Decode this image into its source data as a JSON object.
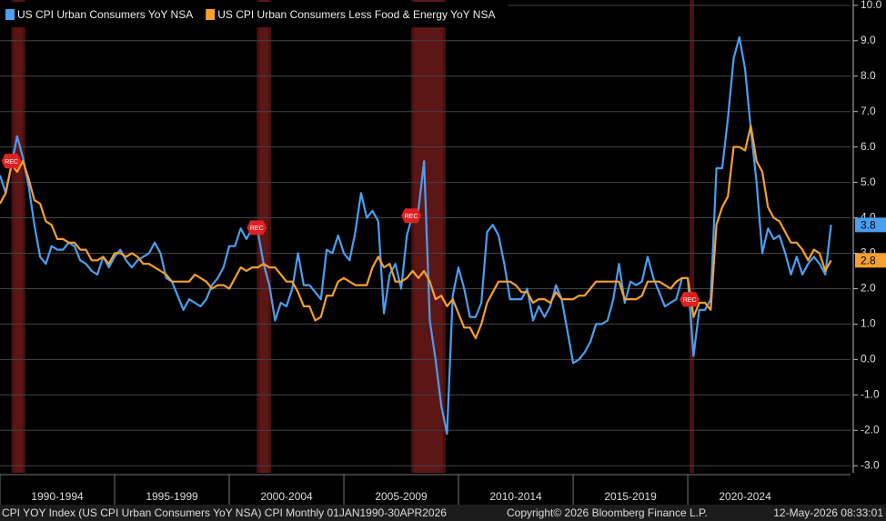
{
  "chart_data": {
    "type": "line",
    "series": [
      {
        "name": "US CPI Urban Consumers YoY NSA",
        "color": "#4a9ff0",
        "values": [
          5.2,
          4.7,
          5.5,
          6.3,
          5.7,
          4.9,
          3.8,
          2.9,
          2.7,
          3.2,
          3.1,
          3.1,
          3.3,
          3.2,
          2.8,
          2.7,
          2.5,
          2.4,
          2.9,
          2.6,
          2.9,
          3.1,
          2.8,
          2.6,
          2.8,
          2.9,
          3.0,
          3.3,
          3.0,
          2.3,
          2.2,
          1.8,
          1.4,
          1.7,
          1.6,
          1.5,
          1.7,
          2.1,
          2.3,
          2.6,
          3.2,
          3.2,
          3.7,
          3.4,
          3.7,
          3.6,
          2.7,
          2.1,
          1.1,
          1.6,
          1.5,
          2.0,
          3.0,
          2.1,
          2.1,
          1.9,
          1.7,
          3.1,
          3.0,
          3.5,
          3.0,
          2.8,
          3.6,
          4.7,
          4.0,
          4.2,
          3.9,
          1.3,
          2.4,
          2.7,
          2.0,
          3.5,
          4.1,
          4.2,
          5.6,
          1.1,
          0.0,
          -1.3,
          -2.1,
          1.8,
          2.6,
          2.0,
          1.2,
          1.2,
          1.6,
          3.6,
          3.8,
          3.5,
          2.7,
          1.7,
          1.7,
          1.7,
          2.0,
          1.1,
          1.5,
          1.2,
          1.5,
          2.1,
          1.7,
          0.8,
          -0.1,
          0.0,
          0.2,
          0.5,
          1.0,
          1.0,
          1.1,
          1.7,
          2.7,
          1.6,
          2.2,
          2.1,
          2.2,
          2.9,
          2.3,
          1.9,
          1.5,
          1.6,
          1.7,
          2.3,
          2.3,
          0.1,
          1.4,
          1.4,
          1.7,
          5.4,
          5.4,
          6.8,
          8.5,
          9.1,
          8.2,
          6.5,
          5.0,
          3.0,
          3.7,
          3.4,
          3.5,
          3.0,
          2.4,
          2.9,
          2.4,
          2.7,
          2.9,
          2.7,
          2.4,
          3.8
        ]
      },
      {
        "name": "US CPI Urban Consumers Less Food & Energy YoY NSA",
        "color": "#f5a030",
        "values": [
          4.4,
          4.7,
          5.5,
          5.3,
          5.6,
          5.1,
          4.5,
          4.4,
          3.9,
          3.8,
          3.4,
          3.4,
          3.3,
          3.3,
          3.1,
          3.1,
          2.8,
          2.8,
          2.9,
          2.7,
          3.0,
          3.0,
          2.9,
          3.0,
          2.9,
          2.7,
          2.7,
          2.6,
          2.5,
          2.4,
          2.2,
          2.2,
          2.2,
          2.2,
          2.4,
          2.3,
          2.2,
          2.0,
          2.1,
          2.1,
          2.0,
          2.3,
          2.6,
          2.5,
          2.6,
          2.6,
          2.7,
          2.6,
          2.6,
          2.4,
          2.2,
          2.2,
          1.9,
          1.5,
          1.5,
          1.1,
          1.2,
          1.8,
          1.8,
          2.2,
          2.3,
          2.2,
          2.1,
          2.1,
          2.1,
          2.6,
          2.9,
          2.6,
          2.7,
          2.2,
          2.2,
          2.3,
          2.5,
          2.3,
          2.5,
          2.2,
          1.7,
          1.8,
          1.5,
          1.7,
          1.3,
          0.9,
          0.9,
          0.6,
          1.0,
          1.6,
          1.9,
          2.2,
          2.2,
          2.2,
          2.1,
          1.9,
          1.9,
          1.6,
          1.7,
          1.7,
          1.6,
          1.9,
          1.7,
          1.7,
          1.7,
          1.8,
          1.8,
          2.0,
          2.2,
          2.2,
          2.2,
          2.2,
          2.2,
          1.7,
          1.7,
          1.7,
          1.8,
          2.2,
          2.2,
          2.2,
          2.1,
          2.0,
          2.2,
          2.3,
          2.3,
          1.2,
          1.6,
          1.6,
          1.4,
          3.8,
          4.3,
          4.6,
          6.0,
          6.0,
          5.9,
          6.6,
          5.6,
          5.3,
          4.3,
          4.0,
          3.9,
          3.6,
          3.3,
          3.3,
          3.1,
          2.8,
          3.1,
          3.0,
          2.5,
          2.8
        ]
      }
    ],
    "x": [
      1990,
      1990.25,
      1990.5,
      1990.75,
      1991,
      1991.25,
      1991.5,
      1991.75,
      1992,
      1992.25,
      1992.5,
      1992.75,
      1993,
      1993.25,
      1993.5,
      1993.75,
      1994,
      1994.25,
      1994.5,
      1994.75,
      1995,
      1995.25,
      1995.5,
      1995.75,
      1996,
      1996.25,
      1996.5,
      1996.75,
      1997,
      1997.25,
      1997.5,
      1997.75,
      1998,
      1998.25,
      1998.5,
      1998.75,
      1999,
      1999.25,
      1999.5,
      1999.75,
      2000,
      2000.25,
      2000.5,
      2000.75,
      2001,
      2001.25,
      2001.5,
      2001.75,
      2002,
      2002.25,
      2002.5,
      2002.75,
      2003,
      2003.25,
      2003.5,
      2003.75,
      2004,
      2004.25,
      2004.5,
      2004.75,
      2005,
      2005.25,
      2005.5,
      2005.75,
      2006,
      2006.25,
      2006.5,
      2006.75,
      2007,
      2007.25,
      2007.5,
      2007.75,
      2008,
      2008.25,
      2008.5,
      2008.75,
      2009,
      2009.25,
      2009.5,
      2009.75,
      2010,
      2010.25,
      2010.5,
      2010.75,
      2011,
      2011.25,
      2011.5,
      2011.75,
      2012,
      2012.25,
      2012.5,
      2012.75,
      2013,
      2013.25,
      2013.5,
      2013.75,
      2014,
      2014.25,
      2014.5,
      2014.75,
      2015,
      2015.25,
      2015.5,
      2015.75,
      2016,
      2016.25,
      2016.5,
      2016.75,
      2017,
      2017.25,
      2017.5,
      2017.75,
      2018,
      2018.25,
      2018.5,
      2018.75,
      2019,
      2019.25,
      2019.5,
      2019.75,
      2020,
      2020.25,
      2020.5,
      2020.75,
      2021,
      2021.25,
      2021.5,
      2021.75,
      2022,
      2022.25,
      2022.5,
      2022.75,
      2023,
      2023.25,
      2023.5,
      2023.75,
      2024,
      2024.25,
      2024.5,
      2024.75,
      2025,
      2025.25,
      2025.5,
      2025.75,
      2026,
      2026.25
    ],
    "xlim": [
      1990,
      2027.1
    ],
    "xticks": [
      {
        "value": 1990,
        "label": "1990-1994"
      },
      {
        "value": 1995,
        "label": "1995-1999"
      },
      {
        "value": 2000,
        "label": "2000-2004"
      },
      {
        "value": 2005,
        "label": "2005-2009"
      },
      {
        "value": 2010,
        "label": "2010-2014"
      },
      {
        "value": 2015,
        "label": "2015-2019"
      },
      {
        "value": 2020,
        "label": "2020-2024"
      }
    ],
    "ylim": [
      -3.2,
      10.15
    ],
    "yticks": [
      {
        "value": -3,
        "label": "-3.0"
      },
      {
        "value": -2,
        "label": "-2.0"
      },
      {
        "value": -1,
        "label": "-1.0"
      },
      {
        "value": 0,
        "label": "0.0"
      },
      {
        "value": 1,
        "label": "1.0"
      },
      {
        "value": 2,
        "label": "2.0"
      },
      {
        "value": 3,
        "label": "3.0"
      },
      {
        "value": 4,
        "label": "4.0"
      },
      {
        "value": 5,
        "label": "5.0"
      },
      {
        "value": 6,
        "label": "6.0"
      },
      {
        "value": 7,
        "label": "7.0"
      },
      {
        "value": 8,
        "label": "8.0"
      },
      {
        "value": 9,
        "label": "9.0"
      },
      {
        "value": 10,
        "label": "10.0"
      }
    ],
    "grid": true,
    "recessions": [
      {
        "start": 1990.5,
        "end": 1991.1
      },
      {
        "start": 2001.2,
        "end": 2001.83
      },
      {
        "start": 2007.94,
        "end": 2009.44
      },
      {
        "start": 2020.08,
        "end": 2020.28
      }
    ],
    "recession_label": "REC",
    "source": "CPI YOY Index (US CPI Urban Consumers YoY NSA) CPI Monthly 01JAN1990-30APR2026",
    "copyright": "Copyright© 2026 Bloomberg Finance L.P.",
    "timestamp": "12-May-2026 08:33:01"
  }
}
